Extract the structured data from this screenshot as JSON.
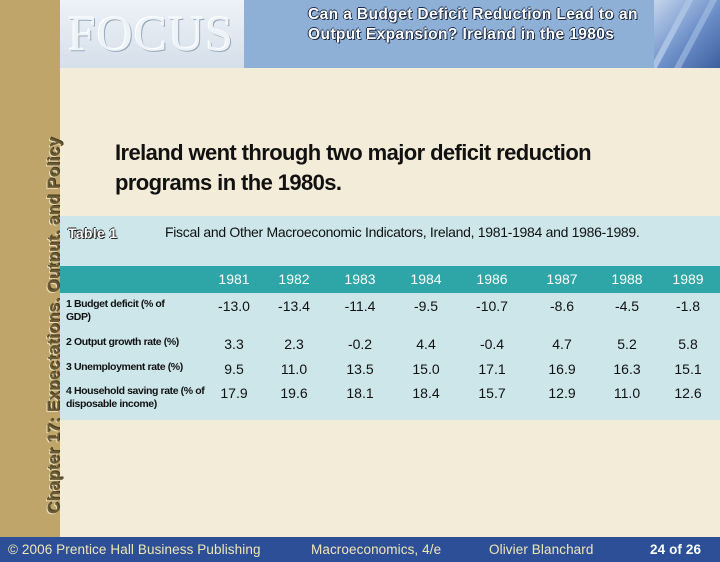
{
  "sidebar": {
    "chapter_title": "Chapter 17: Expectations, Output, and Policy"
  },
  "header": {
    "logo": "FOCUS",
    "title": "Can a Budget Deficit Reduction Lead to an Output Expansion? Ireland in the 1980s"
  },
  "headline": "Ireland went through two major deficit reduction programs in the 1980s.",
  "table": {
    "label": "Table 1",
    "caption": "Fiscal and Other Macroeconomic Indicators, Ireland, 1981-1984 and 1986-1989.",
    "years": [
      "1981",
      "1982",
      "1983",
      "1984",
      "1986",
      "1987",
      "1988",
      "1989"
    ],
    "rows": [
      {
        "label": "1 Budget deficit (% of GDP)",
        "values": [
          "-13.0",
          "-13.4",
          "-11.4",
          "-9.5",
          "-10.7",
          "-8.6",
          "-4.5",
          "-1.8"
        ]
      },
      {
        "label": "2 Output growth rate (%)",
        "values": [
          "3.3",
          "2.3",
          "-0.2",
          "4.4",
          "-0.4",
          "4.7",
          "5.2",
          "5.8"
        ]
      },
      {
        "label": "3 Unemployment rate (%)",
        "values": [
          "9.5",
          "11.0",
          "13.5",
          "15.0",
          "17.1",
          "16.9",
          "16.3",
          "15.1"
        ]
      },
      {
        "label": "4 Household saving rate (% of disposable income)",
        "values": [
          "17.9",
          "19.6",
          "18.1",
          "18.4",
          "15.7",
          "12.9",
          "11.0",
          "12.6"
        ]
      }
    ]
  },
  "footer": {
    "copyright": "© 2006 Prentice Hall Business Publishing",
    "book": "Macroeconomics, 4/e",
    "author": "Olivier Blanchard",
    "page": "24 of 26"
  }
}
